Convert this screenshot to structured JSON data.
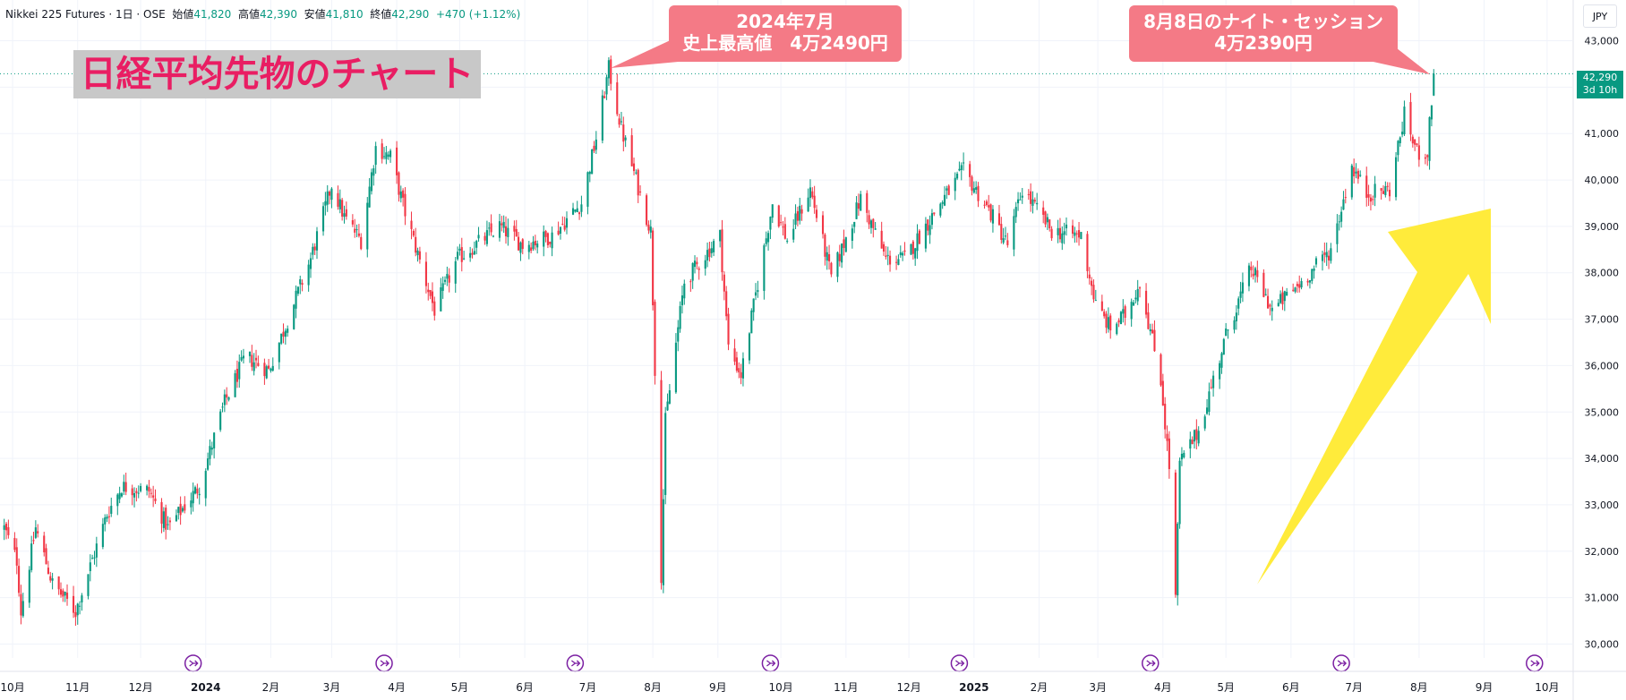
{
  "header": {
    "symbol": "Nikkei 225 Futures · 1日 · OSE",
    "open_label": "始値",
    "open_value": "41,820",
    "high_label": "高値",
    "high_value": "42,390",
    "low_label": "安値",
    "low_value": "41,810",
    "close_label": "終値",
    "close_value": "42,290",
    "change": "+470 (+1.12%)"
  },
  "currency": "JPY",
  "last_price": {
    "value": "42,290",
    "countdown": "3d 10h"
  },
  "title": "日経平均先物のチャート",
  "callouts": [
    {
      "line1": "2024年7月",
      "line2": "史上最高値　4万2490円"
    },
    {
      "line1": "8月8日のナイト・セッション",
      "line2": "4万2390円"
    }
  ],
  "colors": {
    "up": "#089981",
    "down": "#f23645",
    "callout": "#f47a86",
    "title_text": "#e91e63",
    "title_bg": "#c8c8c8",
    "arrow": "#ffeb3b",
    "event_marker": "#7b1fa2"
  },
  "chart_data": {
    "type": "candlestick",
    "y_axis_label": "",
    "ylim": [
      29700,
      43300
    ],
    "y_ticks": [
      "43,000",
      "42,000",
      "41,000",
      "40,000",
      "39,000",
      "38,000",
      "37,000",
      "36,000",
      "35,000",
      "34,000",
      "33,000",
      "32,000",
      "31,000",
      "30,000"
    ],
    "x_ticks": [
      "10月",
      "11月",
      "12月",
      "2024",
      "2月",
      "3月",
      "4月",
      "5月",
      "6月",
      "7月",
      "8月",
      "9月",
      "10月",
      "11月",
      "12月",
      "2025",
      "2月",
      "3月",
      "4月",
      "5月",
      "6月",
      "7月",
      "8月",
      "9月",
      "10月"
    ],
    "price_path": [
      [
        "2023-09-27",
        32500
      ],
      [
        "2023-10-03",
        31800
      ],
      [
        "2023-10-05",
        30700
      ],
      [
        "2023-10-12",
        32500
      ],
      [
        "2023-10-20",
        31300
      ],
      [
        "2023-10-31",
        30700
      ],
      [
        "2023-11-15",
        32800
      ],
      [
        "2023-11-22",
        33400
      ],
      [
        "2023-12-05",
        33300
      ],
      [
        "2023-12-14",
        32500
      ],
      [
        "2023-12-29",
        33400
      ],
      [
        "2024-01-10",
        35200
      ],
      [
        "2024-01-20",
        36200
      ],
      [
        "2024-01-31",
        35900
      ],
      [
        "2024-02-20",
        38300
      ],
      [
        "2024-03-01",
        39900
      ],
      [
        "2024-03-07",
        39200
      ],
      [
        "2024-03-15",
        38700
      ],
      [
        "2024-03-22",
        40700
      ],
      [
        "2024-03-29",
        40500
      ],
      [
        "2024-04-05",
        39300
      ],
      [
        "2024-04-19",
        37200
      ],
      [
        "2024-04-30",
        38300
      ],
      [
        "2024-05-20",
        39000
      ],
      [
        "2024-05-31",
        38600
      ],
      [
        "2024-06-14",
        38800
      ],
      [
        "2024-06-28",
        39500
      ],
      [
        "2024-07-05",
        40900
      ],
      [
        "2024-07-11",
        42400
      ],
      [
        "2024-07-17",
        41100
      ],
      [
        "2024-07-31",
        38900
      ],
      [
        "2024-08-05",
        31500
      ],
      [
        "2024-08-07",
        34800
      ],
      [
        "2024-08-16",
        37800
      ],
      [
        "2024-09-02",
        38800
      ],
      [
        "2024-09-06",
        36400
      ],
      [
        "2024-09-12",
        35800
      ],
      [
        "2024-09-27",
        39500
      ],
      [
        "2024-10-04",
        38700
      ],
      [
        "2024-10-15",
        39800
      ],
      [
        "2024-10-25",
        37900
      ],
      [
        "2024-11-08",
        39600
      ],
      [
        "2024-11-20",
        38300
      ],
      [
        "2024-11-29",
        38300
      ],
      [
        "2024-12-16",
        39500
      ],
      [
        "2024-12-27",
        40200
      ],
      [
        "2025-01-10",
        39200
      ],
      [
        "2025-01-17",
        38600
      ],
      [
        "2025-01-24",
        39800
      ],
      [
        "2025-02-07",
        38900
      ],
      [
        "2025-02-21",
        38800
      ],
      [
        "2025-02-28",
        37300
      ],
      [
        "2025-03-07",
        36800
      ],
      [
        "2025-03-14",
        37100
      ],
      [
        "2025-03-21",
        37800
      ],
      [
        "2025-03-31",
        35700
      ],
      [
        "2025-04-04",
        33800
      ],
      [
        "2025-04-07",
        31000
      ],
      [
        "2025-04-09",
        33900
      ],
      [
        "2025-04-18",
        34600
      ],
      [
        "2025-05-02",
        36800
      ],
      [
        "2025-05-13",
        38100
      ],
      [
        "2025-05-23",
        37200
      ],
      [
        "2025-06-06",
        37800
      ],
      [
        "2025-06-20",
        38500
      ],
      [
        "2025-06-30",
        40300
      ],
      [
        "2025-07-07",
        39700
      ],
      [
        "2025-07-18",
        39800
      ],
      [
        "2025-07-25",
        41400
      ],
      [
        "2025-07-31",
        40600
      ],
      [
        "2025-08-05",
        40600
      ],
      [
        "2025-08-08",
        42300
      ]
    ],
    "annotations": [
      {
        "text_ref": "callouts.0",
        "date": "2024-07-11",
        "value": 42490
      },
      {
        "text_ref": "callouts.1",
        "date": "2025-08-08",
        "value": 42390
      }
    ],
    "last_value": 42290,
    "grid": true
  }
}
